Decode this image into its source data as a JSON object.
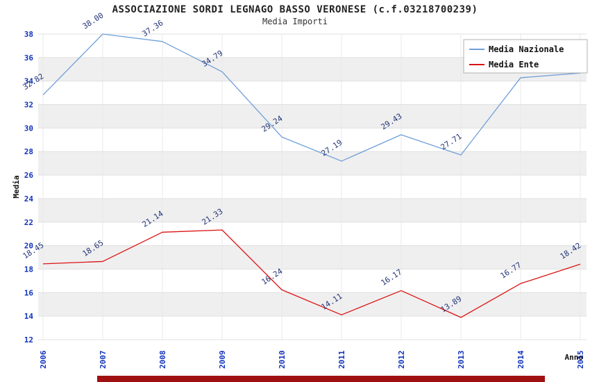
{
  "chart_data": {
    "type": "line",
    "title": "ASSOCIAZIONE SORDI LEGNAGO BASSO VERONESE (c.f.03218700239)",
    "subtitle": "Media Importi",
    "xlabel": "Anno",
    "ylabel": "Media",
    "x": [
      "2006",
      "2007",
      "2008",
      "2009",
      "2010",
      "2011",
      "2012",
      "2013",
      "2014",
      "2015"
    ],
    "ylim": [
      12,
      38
    ],
    "ytick_step": 2,
    "grid": true,
    "legend_position": "top-right",
    "series": [
      {
        "name": "Media Nazionale",
        "color": "#6f9fd8",
        "values": [
          32.82,
          38.0,
          37.36,
          34.79,
          29.24,
          27.19,
          29.43,
          27.71,
          34.28,
          34.68
        ],
        "labels": [
          "32.82",
          "38.00",
          "37.36",
          "34.79",
          "29.24",
          "27.19",
          "29.43",
          "27.71",
          "34.28",
          "34.68"
        ]
      },
      {
        "name": "Media Ente",
        "color": "#dd1111",
        "values": [
          18.45,
          18.65,
          21.14,
          21.33,
          16.24,
          14.11,
          16.17,
          13.89,
          16.77,
          18.42
        ],
        "labels": [
          "18.45",
          "18.65",
          "21.14",
          "21.33",
          "16.24",
          "14.11",
          "16.17",
          "13.89",
          "16.77",
          "18.42"
        ]
      }
    ],
    "band_colors": [
      "#ffffff",
      "#efefef"
    ],
    "gridline_color": "#e0e0e0",
    "vgrid_color": "#e9e9e9",
    "tick_color": "#1133bb",
    "data_label_color": "#223377",
    "axis_title_color": "#111111",
    "legend_border_color": "#b0b0b0",
    "footer_bar_color": "#a01010"
  }
}
